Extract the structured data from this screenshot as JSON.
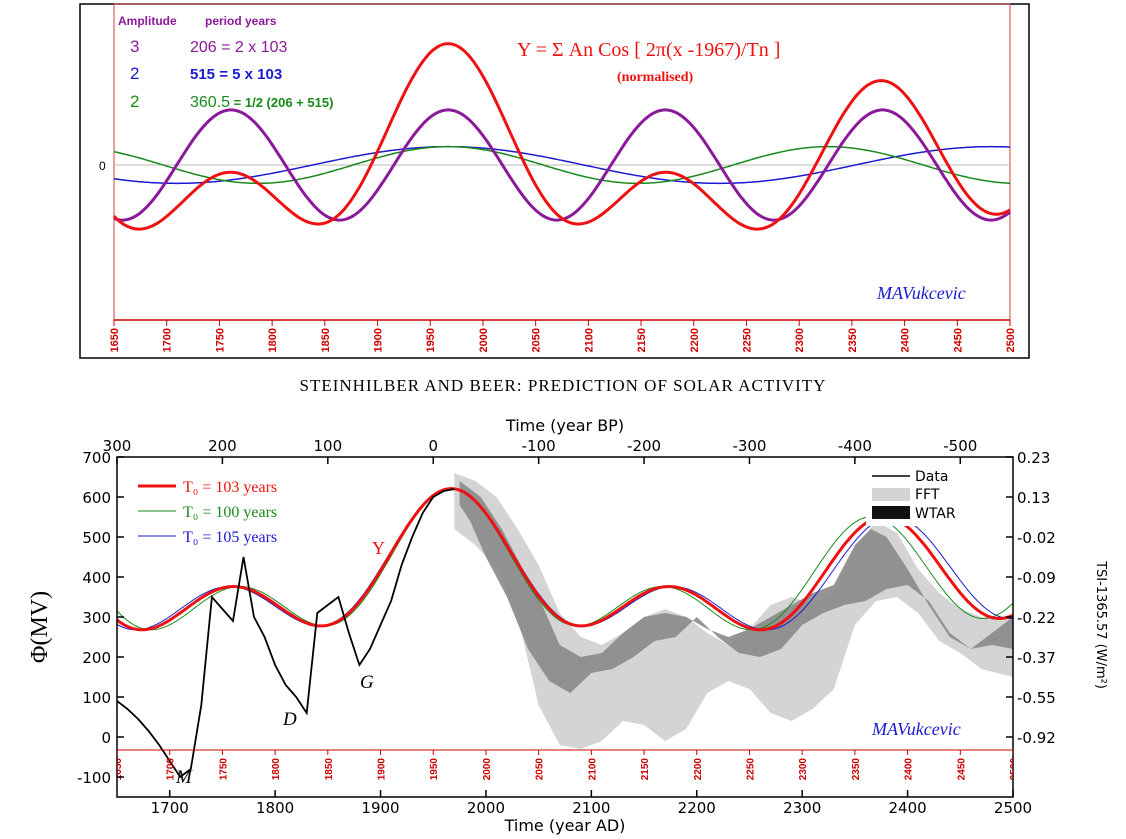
{
  "colors": {
    "red": "#ee1111",
    "purple": "#8b1a9a",
    "blue": "#1a1ad0",
    "green": "#1a8a1a",
    "light_gray": "#d4d4d4",
    "dark_gray": "#8a8a8a",
    "frame_red": "#cc0000",
    "signature": "#1a1ad0"
  },
  "top_chart": {
    "legend": {
      "header_amplitude": "Amplitude",
      "header_period": "period years",
      "rows": [
        {
          "amplitude": "3",
          "period": "206 = 2 x 103",
          "color": "#8b1a9a"
        },
        {
          "amplitude": "2",
          "period": "515 = 5 x 103",
          "color": "#1a1ad0"
        },
        {
          "amplitude": "2",
          "period": "360.5",
          "period_note": " = 1/2 (206 + 515)",
          "color": "#1a8a1a"
        }
      ]
    },
    "formula": "Y = Σ An Cos [ 2π(x -1967)/Tn ]",
    "formula_note": "(normalised)",
    "zero_label": "0",
    "signature": "MAVukcevic",
    "x_ticks": [
      "1650",
      "1700",
      "1750",
      "1800",
      "1850",
      "1900",
      "1950",
      "2000",
      "2050",
      "2100",
      "2150",
      "2200",
      "2250",
      "2300",
      "2350",
      "2400",
      "2450",
      "2500"
    ]
  },
  "main_title": "STEINHILBER AND BEER: PREDICTION OF SOLAR ACTIVITY",
  "bottom_chart": {
    "top_axis_label": "Time (year BP)",
    "top_ticks": [
      "300",
      "200",
      "100",
      "0",
      "-100",
      "-200",
      "-300",
      "-400",
      "-500"
    ],
    "bottom_axis_label": "Time (year AD)",
    "bottom_ticks": [
      "1700",
      "1800",
      "1900",
      "2000",
      "2100",
      "2200",
      "2300",
      "2400",
      "2500"
    ],
    "inner_ticks": [
      "1650",
      "1700",
      "1750",
      "1800",
      "1850",
      "1900",
      "1950",
      "2000",
      "2050",
      "2100",
      "2150",
      "2200",
      "2250",
      "2300",
      "2350",
      "2400",
      "2450",
      "2500"
    ],
    "left_axis_label": "Φ(MV)",
    "left_ticks": [
      "700",
      "600",
      "500",
      "400",
      "300",
      "200",
      "100",
      "0",
      "-100"
    ],
    "right_axis_label": "TSI-1365.57 (W/m²)",
    "right_ticks": [
      "0.23",
      "0.13",
      "-0.02",
      "-0.09",
      "-0.22",
      "-0.37",
      "-0.55",
      "-0.92"
    ],
    "legend_left": [
      {
        "label": "T₀ = 103 years",
        "color": "#ee1111"
      },
      {
        "label": "T₀ = 100 years",
        "color": "#1a8a1a"
      },
      {
        "label": "T₀ = 105 years",
        "color": "#1a1ad0"
      }
    ],
    "legend_right": [
      "Data",
      "FFT",
      "WTAR"
    ],
    "annotations": {
      "Y": "Y",
      "D": "D",
      "G": "G",
      "M": "M"
    },
    "signature": "MAVukcevic"
  },
  "chart_data": [
    {
      "type": "line",
      "title": "Y = Σ An Cos [ 2π(x -1967)/Tn ] (normalised)",
      "x_range": [
        1650,
        2500
      ],
      "series": [
        {
          "amplitude": 3,
          "period": 206,
          "color": "#8b1a9a"
        },
        {
          "amplitude": 2,
          "period": 515,
          "color": "#1a1ad0"
        },
        {
          "amplitude": 2,
          "period": 360.5,
          "color": "#1a8a1a"
        },
        {
          "formula": "sum of components",
          "color": "#ee1111"
        }
      ],
      "grid": false
    },
    {
      "type": "line",
      "title": "STEINHILBER AND BEER: PREDICTION OF SOLAR ACTIVITY",
      "xlabel": "Time (year AD)",
      "ylabel": "Φ(MV)",
      "xlim": [
        1650,
        2500
      ],
      "ylim": [
        -130,
        700
      ],
      "series": [
        {
          "name": "Data",
          "color": "#000000",
          "x": [
            1650,
            1660,
            1670,
            1680,
            1690,
            1700,
            1710,
            1720,
            1730,
            1740,
            1750,
            1760,
            1770,
            1780,
            1790,
            1800,
            1810,
            1820,
            1830,
            1840,
            1850,
            1860,
            1870,
            1880,
            1890,
            1900,
            1910,
            1920,
            1930,
            1940,
            1950,
            1960,
            1970
          ],
          "y": [
            90,
            70,
            45,
            15,
            -20,
            -60,
            -100,
            -80,
            80,
            350,
            320,
            290,
            450,
            300,
            250,
            180,
            130,
            100,
            60,
            310,
            330,
            350,
            260,
            180,
            220,
            280,
            340,
            430,
            500,
            560,
            600,
            615,
            620
          ]
        },
        {
          "name": "T₀ = 103 years",
          "color": "#ee1111"
        },
        {
          "name": "T₀ = 100 years",
          "color": "#1a8a1a"
        },
        {
          "name": "T₀ = 105 years",
          "color": "#1a1ad0"
        },
        {
          "name": "FFT",
          "color": "#d4d4d4"
        },
        {
          "name": "WTAR",
          "color": "#8a8a8a"
        }
      ],
      "right_axis": {
        "label": "TSI-1365.57 (W/m²)",
        "ticks": [
          0.23,
          0.13,
          -0.02,
          -0.09,
          -0.22,
          -0.37,
          -0.55,
          -0.92
        ]
      },
      "top_axis": {
        "label": "Time (year BP)",
        "ticks": [
          300,
          200,
          100,
          0,
          -100,
          -200,
          -300,
          -400,
          -500
        ]
      }
    }
  ]
}
